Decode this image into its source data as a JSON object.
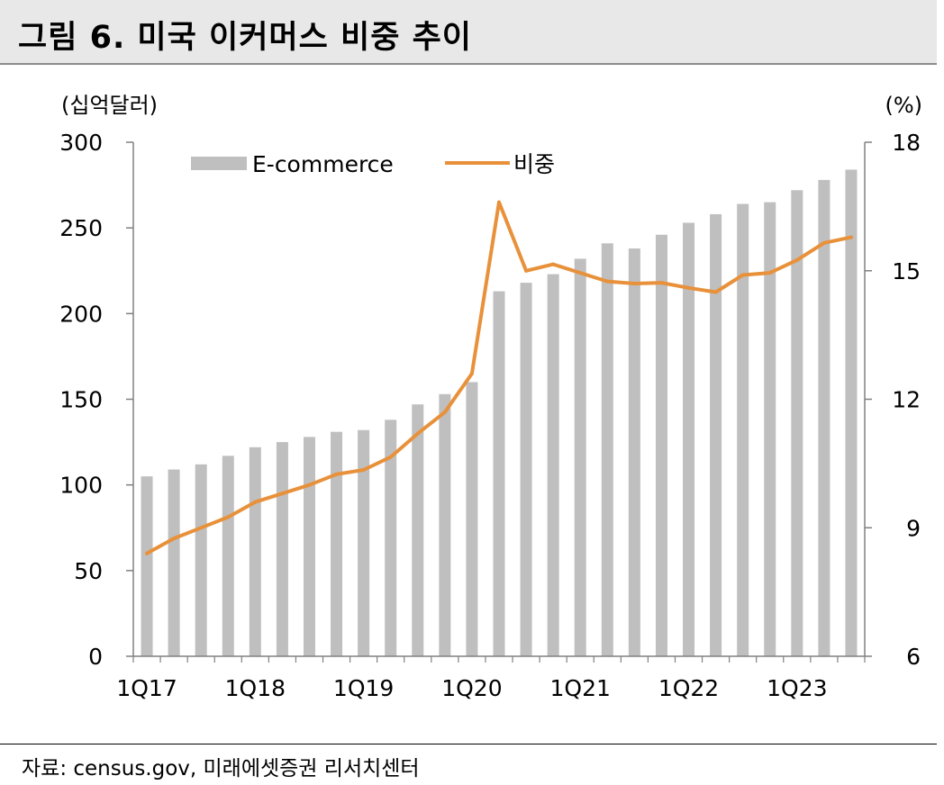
{
  "header": {
    "title": "그림 6. 미국 이커머스 비중 추이"
  },
  "footer": {
    "source": "자료: census.gov, 미래에셋증권 리서치센터"
  },
  "chart_data": {
    "type": "bar",
    "title": "",
    "left_unit": "(십억달러)",
    "right_unit": "(%)",
    "y_left": {
      "min": 0,
      "max": 300,
      "ticks": [
        0,
        50,
        100,
        150,
        200,
        250,
        300
      ]
    },
    "y_right": {
      "min": 6,
      "max": 18,
      "ticks": [
        6,
        9,
        12,
        15,
        18
      ]
    },
    "grid": false,
    "legend_position": "top-left",
    "x": [
      "1Q17",
      "2Q17",
      "3Q17",
      "4Q17",
      "1Q18",
      "2Q18",
      "3Q18",
      "4Q18",
      "1Q19",
      "2Q19",
      "3Q19",
      "4Q19",
      "1Q20",
      "2Q20",
      "3Q20",
      "4Q20",
      "1Q21",
      "2Q21",
      "3Q21",
      "4Q21",
      "1Q22",
      "2Q22",
      "3Q22",
      "4Q22",
      "1Q23",
      "2Q23",
      "3Q23"
    ],
    "x_tick_labels": [
      "1Q17",
      "1Q18",
      "1Q19",
      "1Q20",
      "1Q21",
      "1Q22",
      "1Q23"
    ],
    "series": [
      {
        "name": "E-commerce",
        "type": "bar",
        "axis": "left",
        "color": "#bfbfbf",
        "values": [
          105,
          109,
          112,
          117,
          122,
          125,
          128,
          131,
          132,
          138,
          147,
          153,
          160,
          213,
          218,
          223,
          232,
          241,
          238,
          246,
          253,
          258,
          264,
          265,
          272,
          278,
          284
        ]
      },
      {
        "name": "비중",
        "type": "line",
        "axis": "right",
        "color": "#e8913a",
        "values": [
          8.4,
          8.75,
          9.0,
          9.25,
          9.6,
          9.8,
          10.0,
          10.25,
          10.35,
          10.65,
          11.2,
          11.7,
          12.6,
          16.6,
          15.0,
          15.15,
          14.95,
          14.75,
          14.7,
          14.72,
          14.6,
          14.5,
          14.9,
          14.95,
          15.25,
          15.65,
          15.78
        ]
      }
    ]
  }
}
